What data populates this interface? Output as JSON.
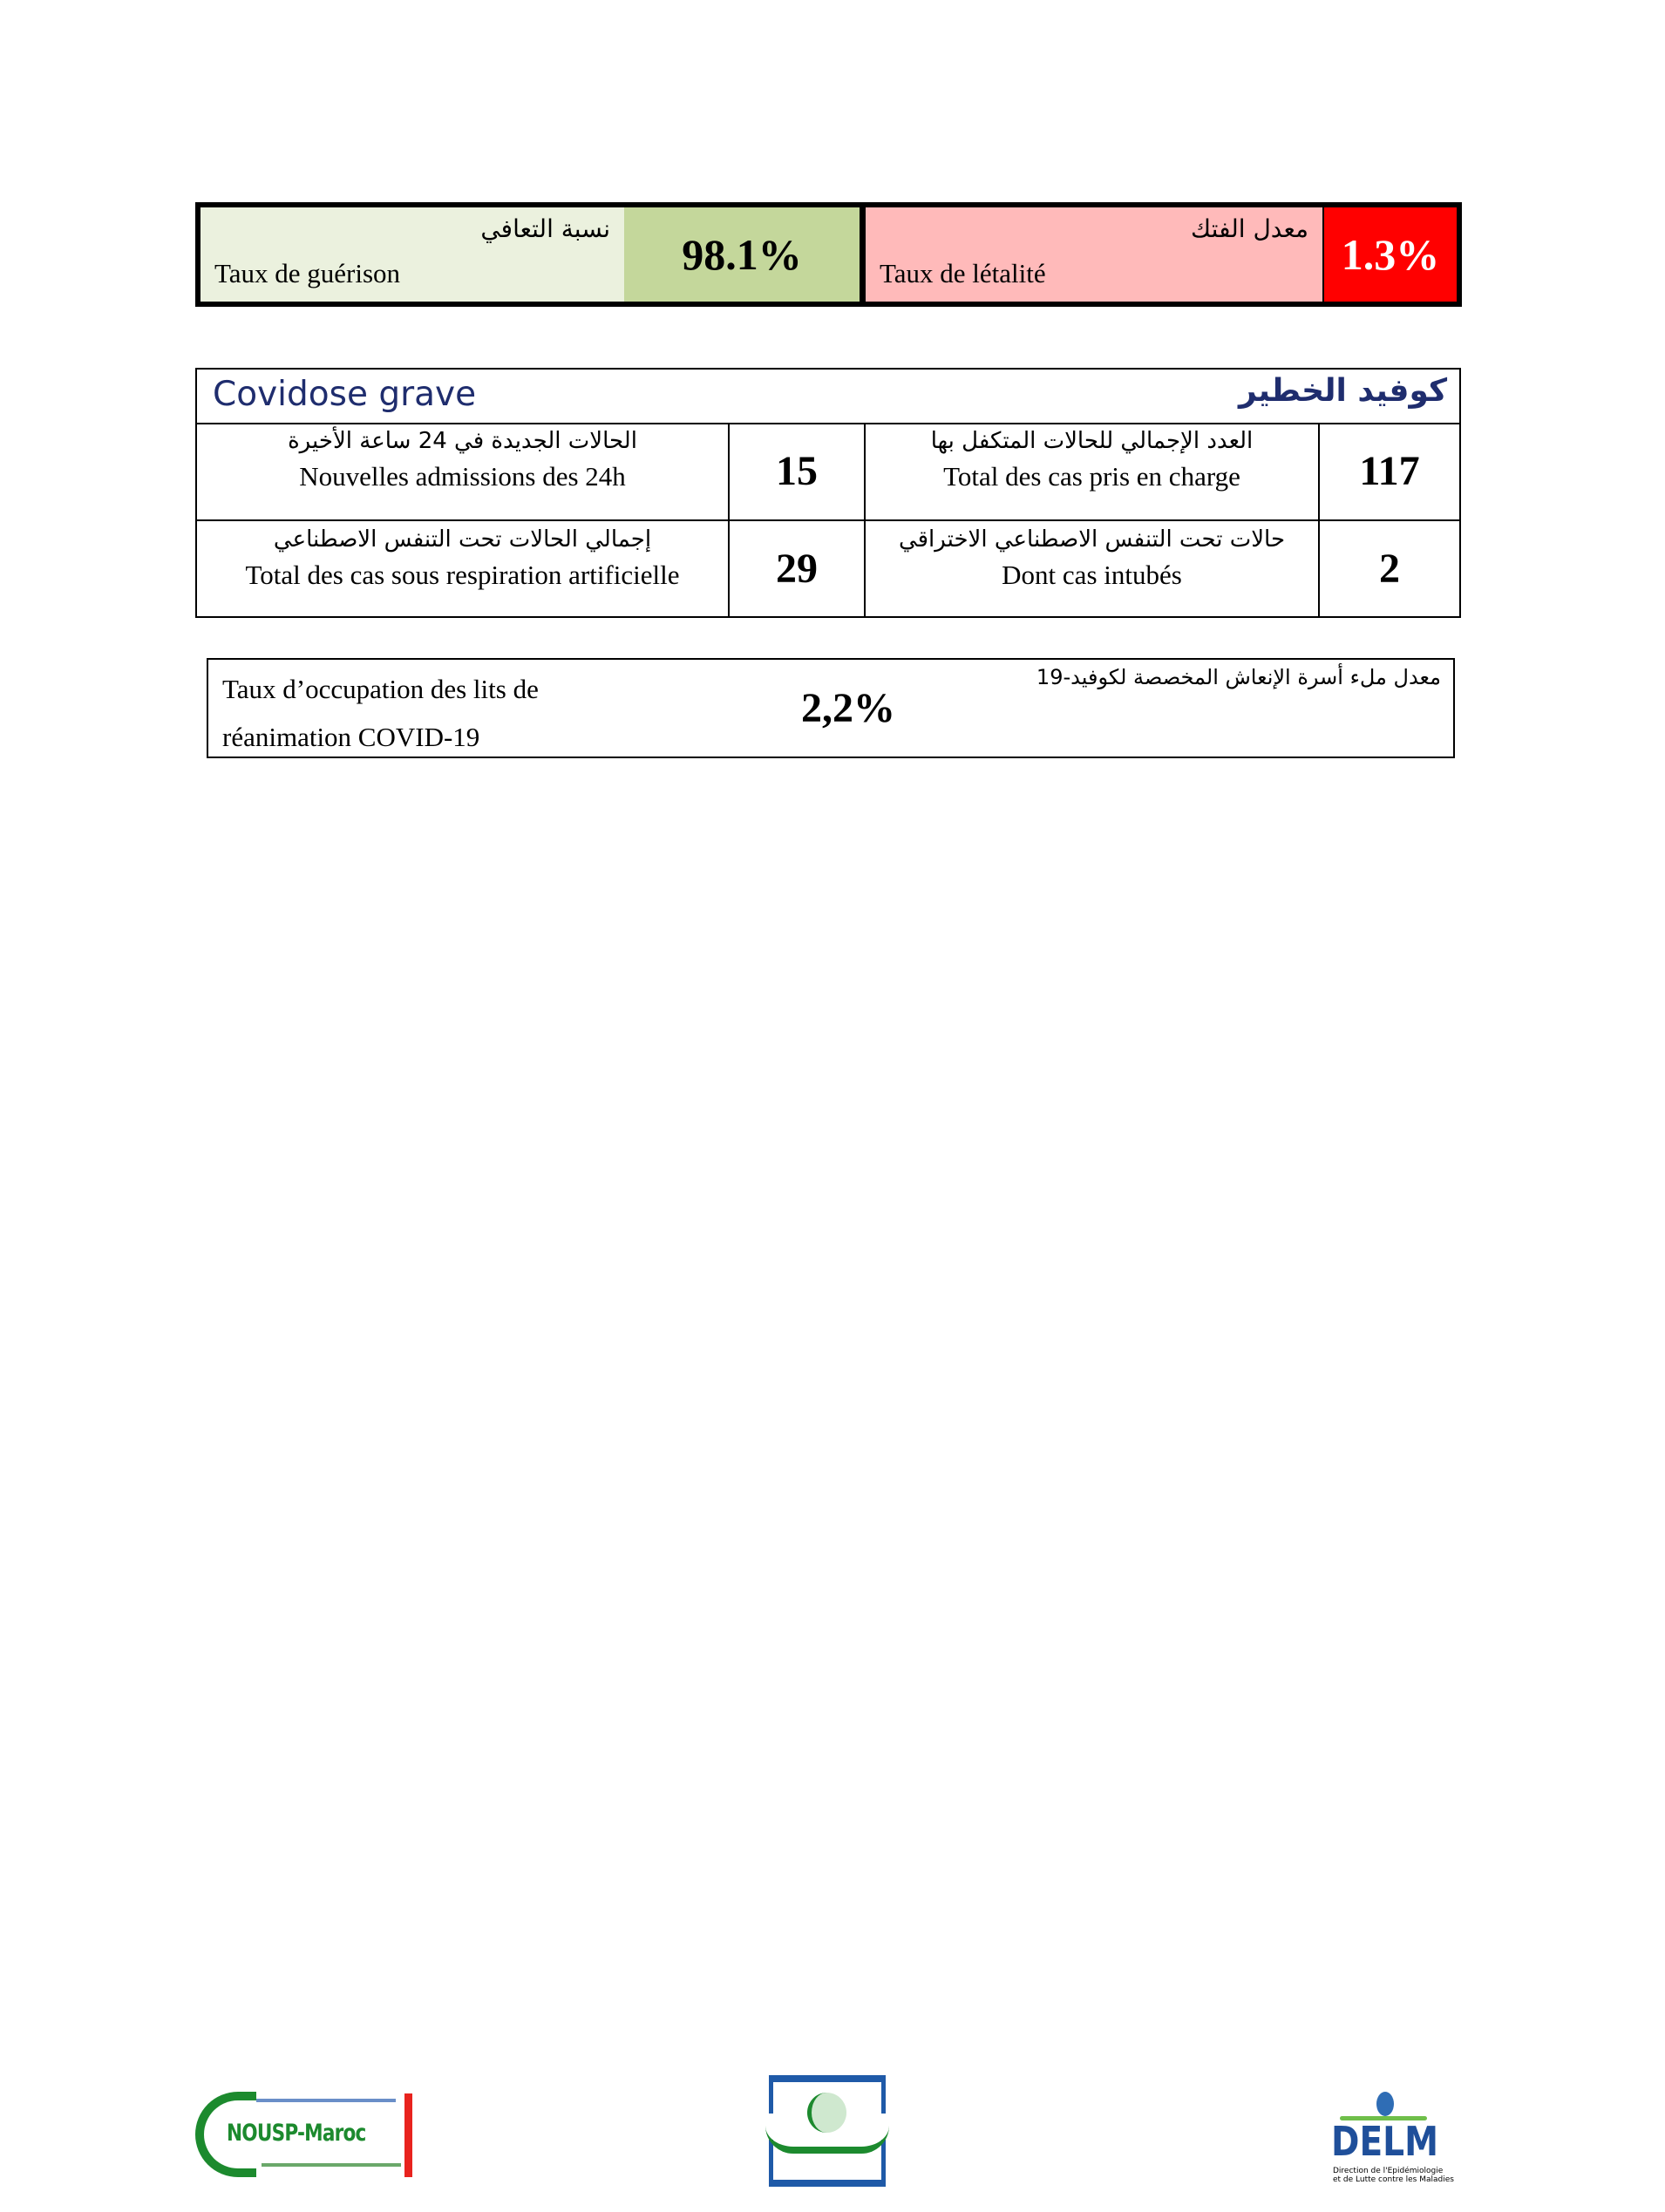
{
  "rates": {
    "recovery": {
      "label_ar": "نسبة  التعافي",
      "label_fr": "Taux de guérison",
      "value": "98.1%",
      "color": "#c4d79b",
      "label_bg": "#ebf1de"
    },
    "lethality": {
      "label_ar": "معدل الفتك",
      "label_fr": "Taux de létalité",
      "value": "1.3%",
      "color": "#ff0000",
      "label_bg": "#ffbaba"
    }
  },
  "severe": {
    "title_fr": "Covidose grave",
    "title_ar": "كوفيد الخطير",
    "title_color": "#1f2d6e",
    "rows": [
      [
        {
          "label_ar": "الحالات الجديدة في 24 ساعة الأخيرة",
          "label_fr": "Nouvelles admissions des 24h",
          "value": "15"
        },
        {
          "label_ar": "العدد الإجمالي للحالات المتكفل بها",
          "label_fr": "Total des cas pris en charge",
          "value": "117"
        }
      ],
      [
        {
          "label_ar": "إجمالي الحالات تحت التنفس الاصطناعي",
          "label_fr": "Total des cas sous respiration artificielle",
          "value": "29"
        },
        {
          "label_ar": "حالات تحت التنفس الاصطناعي الاختراقي",
          "label_fr": "Dont cas intubés",
          "value": "2"
        }
      ]
    ]
  },
  "occupancy": {
    "label_fr_line1": "Taux d’occupation des lits de",
    "label_fr_line2": "réanimation COVID-19",
    "label_ar": "معدل ملء أسرة الإنعاش المخصصة لكوفيد-19",
    "value": "2,2%"
  },
  "logos": {
    "left": {
      "text": "NOUSP-Maroc"
    },
    "right": {
      "text": "DELM",
      "subtitle_line1": "Direction de l'Epidémiologie",
      "subtitle_line2": "et de Lutte contre les Maladies"
    }
  }
}
